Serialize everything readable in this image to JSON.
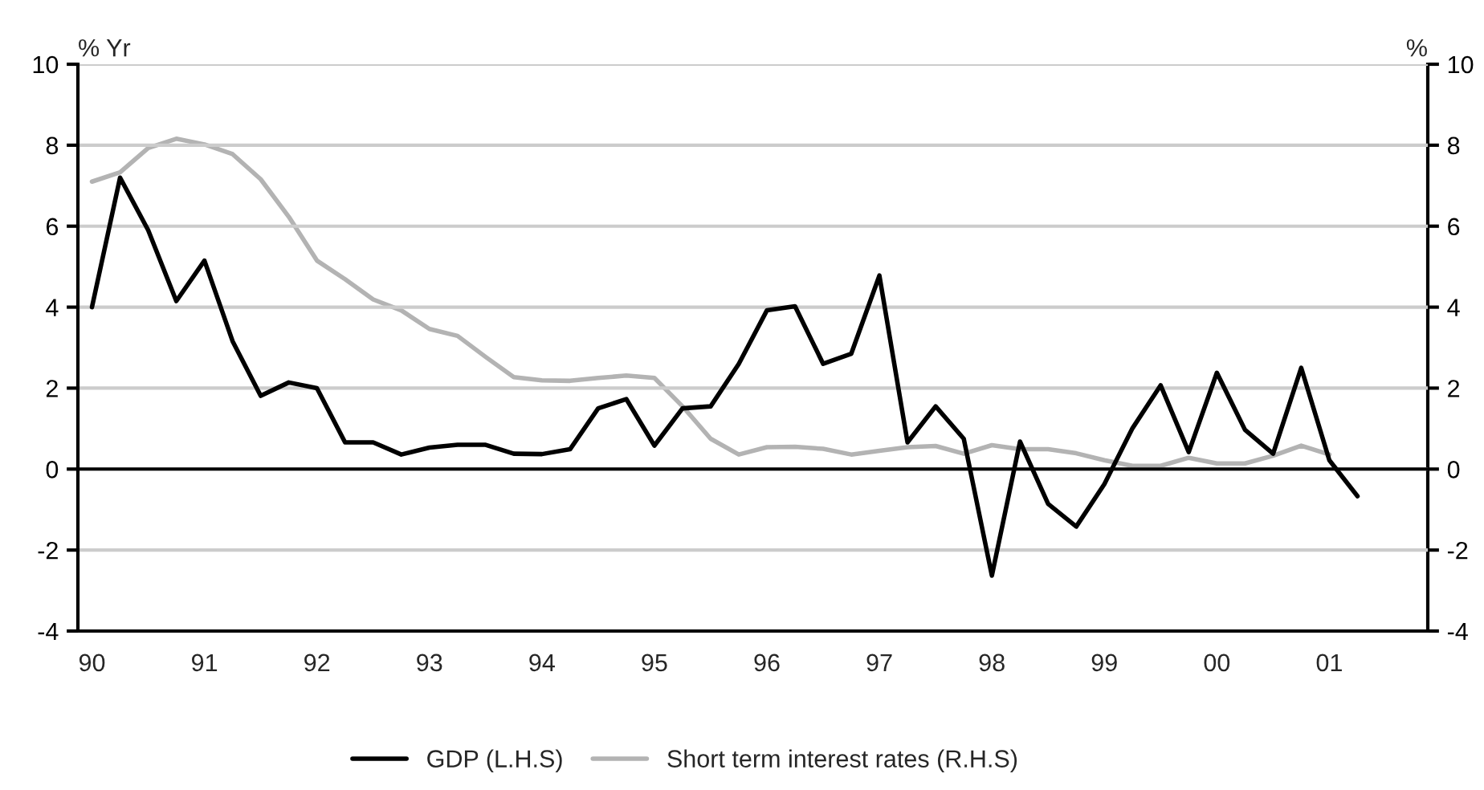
{
  "chart_data": {
    "type": "line",
    "categories": [
      "90",
      null,
      null,
      null,
      "91",
      null,
      null,
      null,
      "92",
      null,
      null,
      null,
      "93",
      null,
      null,
      null,
      "94",
      null,
      null,
      null,
      "95",
      null,
      null,
      null,
      "96",
      null,
      null,
      null,
      "97",
      null,
      null,
      null,
      "98",
      null,
      null,
      null,
      "99",
      null,
      null,
      null,
      "00",
      null,
      null,
      null,
      "01",
      null,
      null,
      null
    ],
    "series": [
      {
        "name": "GDP (L.H.S)",
        "color": "#000000",
        "values": [
          4.0,
          7.2,
          5.9,
          4.15,
          5.15,
          3.16,
          1.81,
          2.14,
          2.0,
          0.66,
          0.66,
          0.36,
          0.53,
          0.6,
          0.6,
          0.38,
          0.37,
          0.49,
          1.5,
          1.73,
          0.58,
          1.5,
          1.55,
          2.6,
          3.92,
          4.02,
          2.6,
          2.85,
          4.78,
          0.66,
          1.55,
          0.75,
          -2.63,
          0.68,
          -0.86,
          -1.42,
          -0.37,
          1.01,
          2.07,
          0.42,
          2.38,
          0.97,
          0.38,
          2.5,
          0.22,
          -0.67,
          null,
          null
        ]
      },
      {
        "name": "Short term interest rates (R.H.S)",
        "color": "#b3b3b3",
        "axis": "y2",
        "values": [
          7.1,
          7.33,
          7.93,
          8.16,
          8.02,
          7.78,
          7.16,
          6.23,
          5.15,
          4.69,
          4.19,
          3.92,
          3.46,
          3.29,
          2.77,
          2.27,
          2.19,
          2.18,
          2.25,
          2.31,
          2.25,
          1.55,
          0.75,
          0.36,
          0.54,
          0.55,
          0.5,
          0.36,
          0.45,
          0.54,
          0.57,
          0.38,
          0.59,
          0.49,
          0.49,
          0.39,
          0.22,
          0.08,
          0.08,
          0.28,
          0.14,
          0.14,
          0.33,
          0.58,
          0.36,
          null,
          null,
          null
        ]
      }
    ],
    "ylabel": "% Yr",
    "y2label": "%",
    "ylim": [
      -4,
      10
    ],
    "yticks": [
      -4,
      -2,
      0,
      2,
      4,
      6,
      8,
      10
    ],
    "y2lim": [
      -4,
      10
    ],
    "y2ticks": [
      -4,
      -2,
      0,
      2,
      4,
      6,
      8,
      10
    ],
    "ref_lines": [
      {
        "axis": "y",
        "value": 0,
        "color": "#000000"
      }
    ],
    "grid": "y",
    "legend": "bottom",
    "marker": "none",
    "line_style": "solid"
  }
}
